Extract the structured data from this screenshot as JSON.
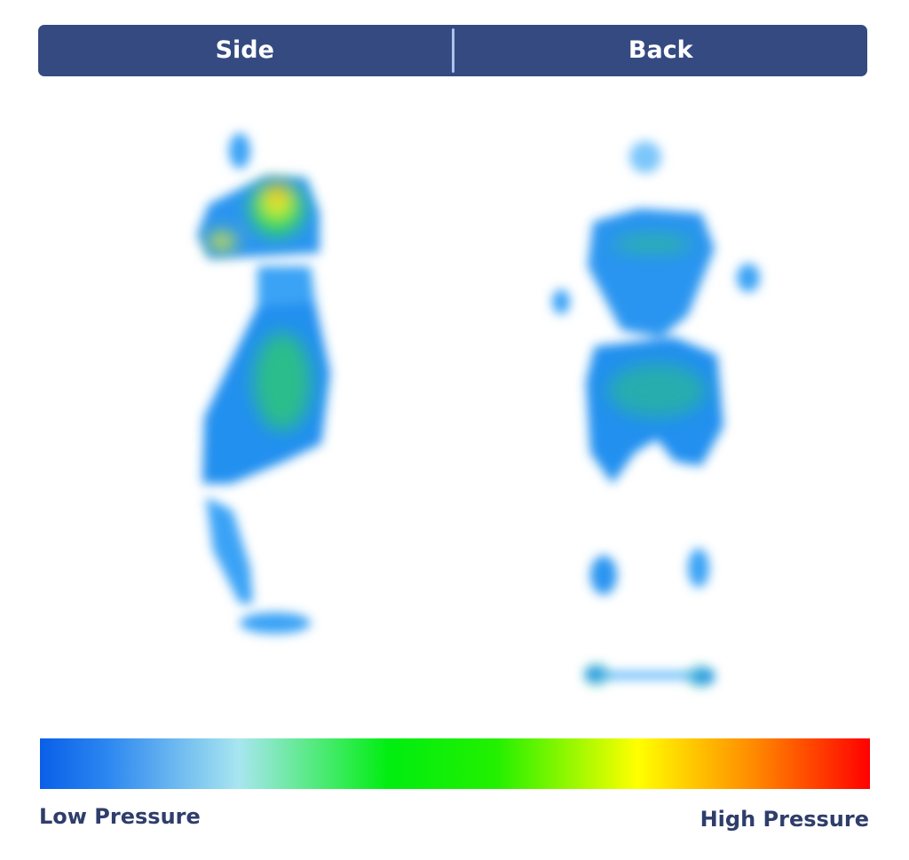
{
  "tabs": [
    {
      "label": "Side"
    },
    {
      "label": "Back"
    }
  ],
  "legend": {
    "low_label": "Low Pressure",
    "high_label": "High Pressure",
    "colors": [
      "#0a5fe8",
      "#2b86f0",
      "#a8e6f0",
      "#00ee10",
      "#ffff00",
      "#ff8a00",
      "#ff0000"
    ]
  },
  "colors": {
    "header": "#344a80",
    "label": "#2f3d6b",
    "low": "#1e8ef2",
    "mid": "#22dd44",
    "high": "#ff2200"
  }
}
